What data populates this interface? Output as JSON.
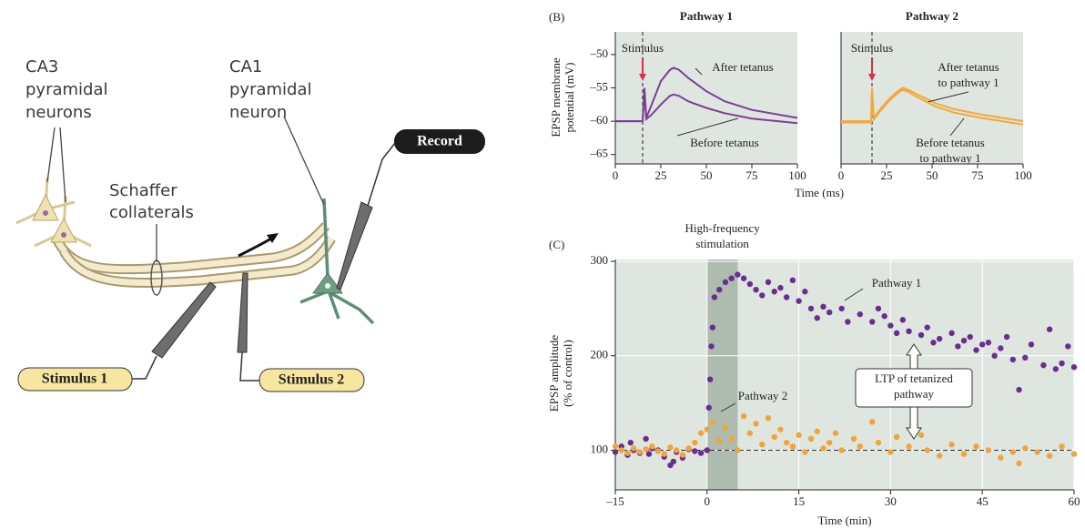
{
  "diagram": {
    "ca3_label": [
      "CA3",
      "pyramidal",
      "neurons"
    ],
    "ca1_label": [
      "CA1",
      "pyramidal",
      "neuron"
    ],
    "schaffer_label": [
      "Schaffer",
      "collaterals"
    ],
    "record": "Record",
    "stimulus_1": "Stimulus 1",
    "stimulus_2": "Stimulus 2"
  },
  "chart_data": [
    {
      "type": "line",
      "panel_label": "(B)",
      "title": "Pathway 1",
      "ylabel": [
        "EPSP membrane",
        "potential (mV)"
      ],
      "xlabel": "Time (ms)",
      "xlim": [
        0,
        100
      ],
      "xticks": [
        0,
        25,
        50,
        75,
        100
      ],
      "ylim": [
        -66.4,
        -46.6
      ],
      "yticks": [
        {
          "value": -65,
          "label": "–65"
        },
        {
          "value": -60,
          "label": "–60"
        },
        {
          "value": -55,
          "label": "–55"
        },
        {
          "value": -50,
          "label": "–50"
        }
      ],
      "stimulus_time": 15,
      "stimulus_label": "Stimulus",
      "x": [
        0,
        14,
        15,
        16,
        17,
        20,
        25,
        30,
        32,
        35,
        40,
        50,
        60,
        75,
        100
      ],
      "series": [
        {
          "name": [
            "After tetanus"
          ],
          "color": "#7b3f98",
          "values": [
            -60,
            -60,
            -60,
            -55,
            -59.5,
            -57.5,
            -54,
            -52.3,
            -52,
            -52.3,
            -53.5,
            -55.5,
            -57,
            -58.3,
            -59.5
          ]
        },
        {
          "name": [
            "Before tetanus"
          ],
          "color": "#7b3f98",
          "values": [
            -60,
            -60,
            -60,
            -55.5,
            -59.7,
            -59,
            -57.5,
            -56.2,
            -56,
            -56.2,
            -57,
            -58,
            -58.8,
            -59.6,
            -60.3
          ]
        }
      ]
    },
    {
      "type": "line",
      "title": "Pathway 2",
      "xlim": [
        0,
        100
      ],
      "xticks": [
        0,
        25,
        50,
        75,
        100
      ],
      "ylim": [
        -66.4,
        -46.6
      ],
      "stimulus_time": 17,
      "stimulus_label": "Stimulus",
      "x": [
        0,
        15,
        16.5,
        17,
        18,
        22,
        27,
        32,
        34,
        37,
        42,
        52,
        62,
        77,
        100
      ],
      "series": [
        {
          "name": [
            "After tetanus",
            "to pathway 1"
          ],
          "color": "#f2a93b",
          "values": [
            -60,
            -60,
            -60,
            -55,
            -59.5,
            -58,
            -56.5,
            -55.3,
            -55,
            -55.3,
            -56,
            -57.3,
            -58.2,
            -59,
            -60
          ]
        },
        {
          "name": [
            "Before tetanus",
            "to pathway 1"
          ],
          "color": "#f2a93b",
          "values": [
            -60.2,
            -60.2,
            -60.2,
            -55.3,
            -59.7,
            -58.3,
            -56.8,
            -55.6,
            -55.3,
            -55.6,
            -56.4,
            -57.8,
            -58.7,
            -59.5,
            -60.5
          ]
        }
      ]
    },
    {
      "type": "scatter",
      "panel_label": "(C)",
      "xlabel": "Time (min)",
      "ylabel": [
        "EPSP amplitude",
        "(% of control)"
      ],
      "xlim": [
        -15,
        60
      ],
      "xticks": [
        {
          "value": -15,
          "label": "–15"
        },
        0,
        15,
        30,
        45,
        60
      ],
      "ylim": [
        58,
        302
      ],
      "yticks": [
        100,
        200,
        300
      ],
      "grid": true,
      "hfs_window": [
        0,
        5
      ],
      "hfs_label": [
        "High-frequency",
        "stimulation"
      ],
      "baseline": 100,
      "ltp_label": [
        "LTP of tetanized",
        "pathway"
      ],
      "series": [
        {
          "name": "Pathway 1",
          "color": "#6b2d8f",
          "x": [
            -15,
            -14,
            -13,
            -12.5,
            -12,
            -11,
            -10,
            -9.5,
            -9,
            -8,
            -7,
            -6,
            -5.5,
            -5,
            -4,
            -3,
            -2,
            -1,
            0,
            0.3,
            0.5,
            0.7,
            0.9,
            1.2,
            2,
            3,
            4,
            5,
            6,
            7,
            8,
            9,
            10,
            11,
            12,
            13,
            14,
            15,
            16,
            17,
            18,
            19,
            20,
            22,
            23,
            25,
            27,
            28,
            29,
            30,
            31,
            32,
            33,
            35,
            36,
            37,
            38,
            40,
            41,
            42,
            43,
            44,
            45,
            46,
            47,
            48,
            49,
            50,
            51,
            52,
            53,
            55,
            56,
            57,
            58,
            59,
            60
          ],
          "values": [
            98,
            104,
            95,
            108,
            100,
            97,
            112,
            96,
            102,
            100,
            93,
            84,
            88,
            98,
            92,
            101,
            99,
            97,
            100,
            145,
            175,
            210,
            230,
            262,
            270,
            278,
            282,
            286,
            282,
            276,
            270,
            264,
            278,
            268,
            272,
            262,
            280,
            258,
            268,
            250,
            240,
            252,
            246,
            250,
            236,
            244,
            236,
            250,
            242,
            232,
            224,
            238,
            226,
            222,
            230,
            214,
            218,
            224,
            210,
            216,
            220,
            206,
            212,
            214,
            200,
            208,
            220,
            196,
            164,
            198,
            212,
            190,
            228,
            186,
            192,
            210,
            188
          ]
        },
        {
          "name": "Pathway 2",
          "color": "#f0a43a",
          "x": [
            -15,
            -14,
            -13,
            -12,
            -11,
            -10,
            -9,
            -8,
            -7,
            -6,
            -5,
            -4,
            -3,
            -2,
            -1,
            0,
            1,
            2,
            3,
            4,
            5,
            6,
            7,
            8,
            9,
            10,
            11,
            12,
            13,
            14,
            15,
            16,
            17,
            18,
            19,
            20,
            21,
            22,
            24,
            25,
            27,
            28,
            30,
            31,
            33,
            35,
            36,
            38,
            40,
            42,
            44,
            46,
            48,
            50,
            51,
            52,
            54,
            56,
            58,
            60
          ],
          "values": [
            104,
            100,
            97,
            102,
            98,
            101,
            104,
            99,
            96,
            103,
            100,
            95,
            102,
            108,
            118,
            122,
            130,
            110,
            124,
            112,
            100,
            136,
            118,
            128,
            106,
            134,
            114,
            122,
            108,
            104,
            116,
            98,
            112,
            120,
            102,
            108,
            118,
            100,
            112,
            104,
            130,
            108,
            98,
            114,
            104,
            116,
            100,
            94,
            106,
            96,
            104,
            100,
            92,
            98,
            86,
            102,
            98,
            94,
            104,
            96
          ]
        }
      ]
    }
  ]
}
